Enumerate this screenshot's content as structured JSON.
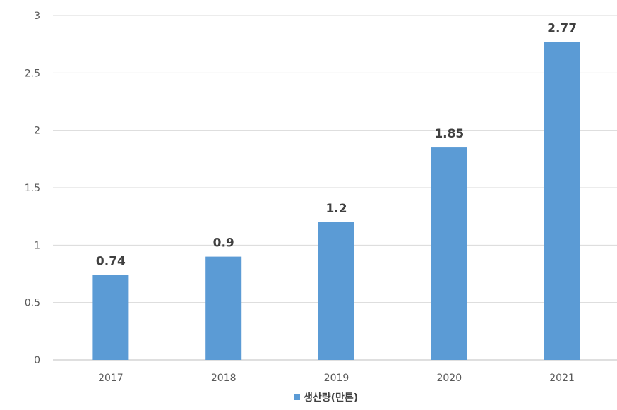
{
  "chart_data": {
    "type": "bar",
    "categories": [
      "2017",
      "2018",
      "2019",
      "2020",
      "2021"
    ],
    "series": [
      {
        "name": "생산량(만톤)",
        "values": [
          0.74,
          0.9,
          1.2,
          1.85,
          2.77
        ]
      }
    ],
    "data_labels": [
      "0.74",
      "0.9",
      "1.2",
      "1.85",
      "2.77"
    ],
    "ylim": [
      0,
      3
    ],
    "yticks": [
      "0",
      "0.5",
      "1",
      "1.5",
      "2",
      "2.5",
      "3"
    ],
    "grid": true,
    "legend": "bottom-center",
    "bar_color": "#5b9bd5"
  }
}
